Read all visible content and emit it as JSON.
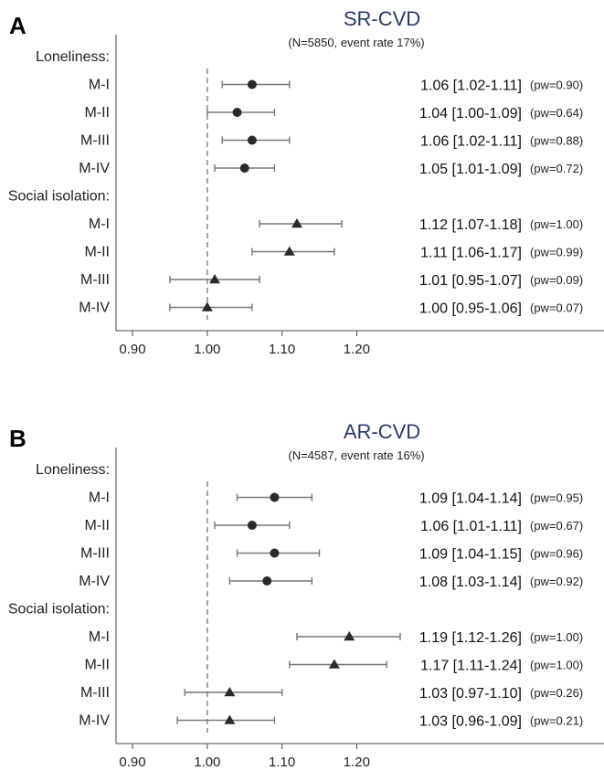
{
  "chart_data": [
    {
      "type": "forest",
      "panel": "A",
      "title": "SR-CVD",
      "subtitle": "(N=5850, event rate 17%)",
      "xlim": [
        0.9,
        1.2
      ],
      "xticks": [
        "0.90",
        "1.00",
        "1.10",
        "1.20"
      ],
      "xtick_values": [
        0.9,
        1.0,
        1.1,
        1.2
      ],
      "reference_line": 1.0,
      "groups": [
        {
          "label": "Loneliness:",
          "marker": "circle",
          "rows": [
            {
              "label": "M-I",
              "estimate": 1.06,
              "lower": 1.02,
              "upper": 1.11,
              "text": "1.06 [1.02-1.11]",
              "pw": "(pw=0.90)"
            },
            {
              "label": "M-II",
              "estimate": 1.04,
              "lower": 1.0,
              "upper": 1.09,
              "text": "1.04 [1.00-1.09]",
              "pw": "(pw=0.64)"
            },
            {
              "label": "M-III",
              "estimate": 1.06,
              "lower": 1.02,
              "upper": 1.11,
              "text": "1.06 [1.02-1.11]",
              "pw": "(pw=0.88)"
            },
            {
              "label": "M-IV",
              "estimate": 1.05,
              "lower": 1.01,
              "upper": 1.09,
              "text": "1.05 [1.01-1.09]",
              "pw": "(pw=0.72)"
            }
          ]
        },
        {
          "label": "Social isolation:",
          "marker": "triangle",
          "rows": [
            {
              "label": "M-I",
              "estimate": 1.12,
              "lower": 1.07,
              "upper": 1.18,
              "text": "1.12 [1.07-1.18]",
              "pw": "(pw=1.00)"
            },
            {
              "label": "M-II",
              "estimate": 1.11,
              "lower": 1.06,
              "upper": 1.17,
              "text": "1.11 [1.06-1.17]",
              "pw": "(pw=0.99)"
            },
            {
              "label": "M-III",
              "estimate": 1.01,
              "lower": 0.95,
              "upper": 1.07,
              "text": "1.01 [0.95-1.07]",
              "pw": "(pw=0.09)"
            },
            {
              "label": "M-IV",
              "estimate": 1.0,
              "lower": 0.95,
              "upper": 1.06,
              "text": "1.00 [0.95-1.06]",
              "pw": "(pw=0.07)"
            }
          ]
        }
      ]
    },
    {
      "type": "forest",
      "panel": "B",
      "title": "AR-CVD",
      "subtitle": "(N=4587, event rate 16%)",
      "xlim": [
        0.9,
        1.2
      ],
      "xticks": [
        "0.90",
        "1.00",
        "1.10",
        "1.20"
      ],
      "xtick_values": [
        0.9,
        1.0,
        1.1,
        1.2
      ],
      "reference_line": 1.0,
      "groups": [
        {
          "label": "Loneliness:",
          "marker": "circle",
          "rows": [
            {
              "label": "M-I",
              "estimate": 1.09,
              "lower": 1.04,
              "upper": 1.14,
              "text": "1.09 [1.04-1.14]",
              "pw": "(pw=0.95)"
            },
            {
              "label": "M-II",
              "estimate": 1.06,
              "lower": 1.01,
              "upper": 1.11,
              "text": "1.06 [1.01-1.11]",
              "pw": "(pw=0.67)"
            },
            {
              "label": "M-III",
              "estimate": 1.09,
              "lower": 1.04,
              "upper": 1.15,
              "text": "1.09 [1.04-1.15]",
              "pw": "(pw=0.96)"
            },
            {
              "label": "M-IV",
              "estimate": 1.08,
              "lower": 1.03,
              "upper": 1.14,
              "text": "1.08 [1.03-1.14]",
              "pw": "(pw=0.92)"
            }
          ]
        },
        {
          "label": "Social isolation:",
          "marker": "triangle",
          "rows": [
            {
              "label": "M-I",
              "estimate": 1.19,
              "lower": 1.12,
              "upper": 1.26,
              "text": "1.19 [1.12-1.26]",
              "pw": "(pw=1.00)"
            },
            {
              "label": "M-II",
              "estimate": 1.17,
              "lower": 1.11,
              "upper": 1.24,
              "text": "1.17 [1.11-1.24]",
              "pw": "(pw=1.00)"
            },
            {
              "label": "M-III",
              "estimate": 1.03,
              "lower": 0.97,
              "upper": 1.1,
              "text": "1.03 [0.97-1.10]",
              "pw": "(pw=0.26)"
            },
            {
              "label": "M-IV",
              "estimate": 1.03,
              "lower": 0.96,
              "upper": 1.09,
              "text": "1.03 [0.96-1.09]",
              "pw": "(pw=0.21)"
            }
          ]
        }
      ]
    }
  ]
}
